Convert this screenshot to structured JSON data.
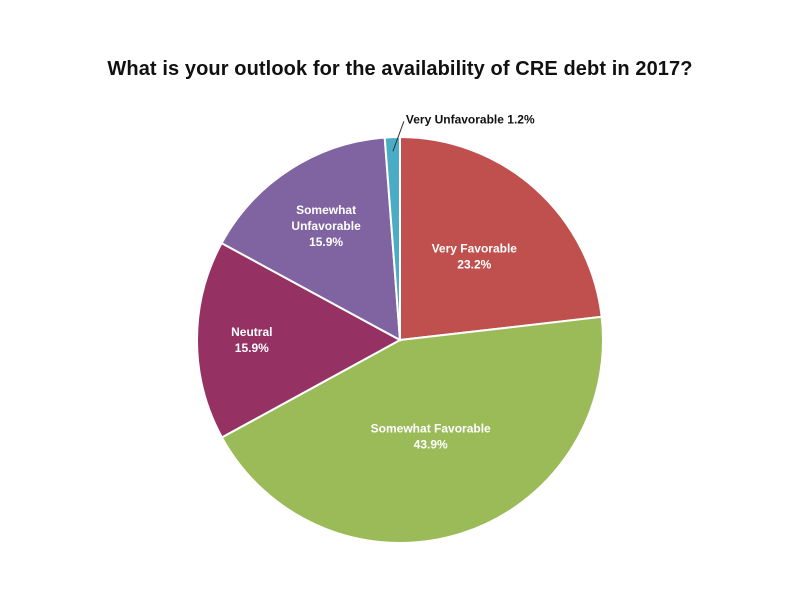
{
  "chart_data": {
    "type": "pie",
    "title": "What is your outlook for the availability of CRE debt in 2017?",
    "slices": [
      {
        "label": "Very Favorable",
        "value": 23.2,
        "display": "23.2%",
        "color": "#c0504d"
      },
      {
        "label": "Somewhat Favorable",
        "value": 43.9,
        "display": "43.9%",
        "color": "#9bbb59"
      },
      {
        "label": "Neutral",
        "value": 15.9,
        "display": "15.9%",
        "color": "#953163"
      },
      {
        "label": "Somewhat Unfavorable",
        "value": 15.9,
        "display": "15.9%",
        "color": "#8064a2"
      },
      {
        "label": "Very Unfavorable",
        "value": 1.2,
        "display": "1.2%",
        "color": "#4bacc6"
      }
    ],
    "start_direction": "top",
    "direction": "clockwise",
    "legend": "none"
  }
}
